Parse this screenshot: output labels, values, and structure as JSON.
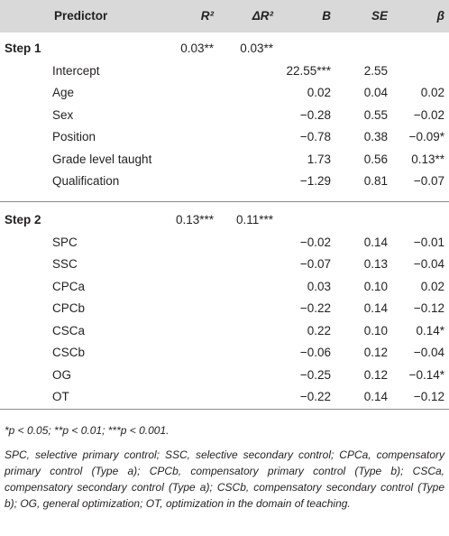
{
  "headers": {
    "predictor": "Predictor",
    "r2": "R²",
    "delta_r2": "ΔR²",
    "b": "B",
    "se": "SE",
    "beta": "β"
  },
  "steps": [
    {
      "label": "Step 1",
      "r2": "0.03**",
      "delta_r2": "0.03**",
      "rows": [
        {
          "predictor": "Intercept",
          "b": "22.55***",
          "se": "2.55",
          "beta": ""
        },
        {
          "predictor": "Age",
          "b": "0.02",
          "se": "0.04",
          "beta": "0.02"
        },
        {
          "predictor": "Sex",
          "b": "−0.28",
          "se": "0.55",
          "beta": "−0.02"
        },
        {
          "predictor": "Position",
          "b": "−0.78",
          "se": "0.38",
          "beta": "−0.09*"
        },
        {
          "predictor": "Grade level taught",
          "b": "1.73",
          "se": "0.56",
          "beta": "0.13**"
        },
        {
          "predictor": "Qualification",
          "b": "−1.29",
          "se": "0.81",
          "beta": "−0.07"
        }
      ]
    },
    {
      "label": "Step 2",
      "r2": "0.13***",
      "delta_r2": "0.11***",
      "rows": [
        {
          "predictor": "SPC",
          "b": "−0.02",
          "se": "0.14",
          "beta": "−0.01"
        },
        {
          "predictor": "SSC",
          "b": "−0.07",
          "se": "0.13",
          "beta": "−0.04"
        },
        {
          "predictor": "CPCa",
          "b": "0.03",
          "se": "0.10",
          "beta": "0.02"
        },
        {
          "predictor": "CPCb",
          "b": "−0.22",
          "se": "0.14",
          "beta": "−0.12"
        },
        {
          "predictor": "CSCa",
          "b": "0.22",
          "se": "0.10",
          "beta": "0.14*"
        },
        {
          "predictor": "CSCb",
          "b": "−0.06",
          "se": "0.12",
          "beta": "−0.04"
        },
        {
          "predictor": "OG",
          "b": "−0.25",
          "se": "0.12",
          "beta": "−0.14*"
        },
        {
          "predictor": "OT",
          "b": "−0.22",
          "se": "0.14",
          "beta": "−0.12"
        }
      ]
    }
  ],
  "notes": {
    "significance": "*p < 0.05; **p < 0.01; ***p < 0.001.",
    "abbreviations": "SPC, selective primary control; SSC, selective secondary control; CPCa, compensatory primary control (Type a); CPCb, compensatory primary control (Type b); CSCa, compensatory secondary control (Type a); CSCb, compensatory secondary control (Type b); OG, general optimization; OT, optimization in the domain of teaching."
  }
}
